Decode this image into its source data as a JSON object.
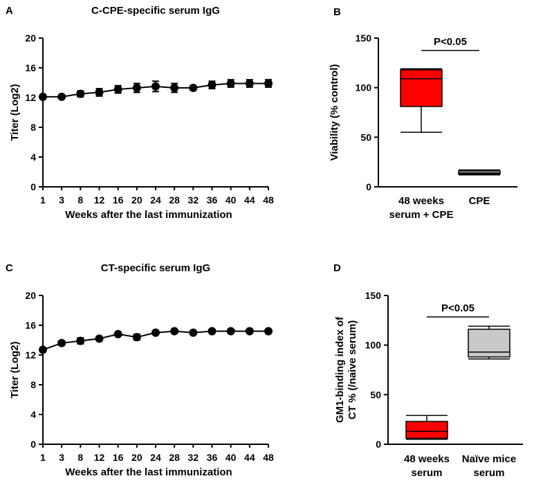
{
  "chart_data": [
    {
      "panel": "A",
      "type": "line",
      "title": "C-CPE-specific serum IgG",
      "xlabel": "Weeks after the last immunization",
      "ylabel": "Titer (Log2)",
      "ylim": [
        0,
        20
      ],
      "yticks": [
        0,
        4,
        8,
        12,
        16,
        20
      ],
      "xticks": [
        1,
        3,
        8,
        12,
        16,
        20,
        24,
        28,
        32,
        36,
        40,
        44,
        48
      ],
      "series": [
        {
          "name": "C-CPE-specific serum IgG",
          "x": [
            1,
            3,
            8,
            12,
            16,
            20,
            24,
            28,
            32,
            36,
            40,
            44,
            48
          ],
          "y": [
            12.1,
            12.1,
            12.5,
            12.7,
            13.1,
            13.3,
            13.5,
            13.3,
            13.3,
            13.7,
            13.9,
            13.9,
            13.9
          ],
          "err": [
            0,
            0,
            0.4,
            0.5,
            0.5,
            0.6,
            0.7,
            0.6,
            0.3,
            0.5,
            0.5,
            0.5,
            0.5
          ]
        }
      ]
    },
    {
      "panel": "B",
      "type": "box",
      "ylabel": "Viability (% control)",
      "ylim": [
        0,
        150
      ],
      "yticks": [
        0,
        50,
        100,
        150
      ],
      "annotation": "P<0.05",
      "boxes": [
        {
          "label_lines": [
            "48 weeks",
            "serum + CPE"
          ],
          "min": 55,
          "q1": 81,
          "median": 109,
          "q3": 118,
          "max": 119,
          "color": "#ff0000"
        },
        {
          "label_lines": [
            "CPE"
          ],
          "min": 12,
          "q1": 13,
          "median": 14,
          "q3": 16,
          "max": 17,
          "color": "#c8c8c8"
        }
      ]
    },
    {
      "panel": "C",
      "type": "line",
      "title": "CT-specific serum IgG",
      "xlabel": "Weeks after the last immunization",
      "ylabel": "Titer (Log2)",
      "ylim": [
        0,
        20
      ],
      "yticks": [
        0,
        4,
        8,
        12,
        16,
        20
      ],
      "xticks": [
        1,
        3,
        8,
        12,
        16,
        20,
        24,
        28,
        32,
        36,
        40,
        44,
        48
      ],
      "series": [
        {
          "name": "CT-specific serum IgG",
          "x": [
            1,
            3,
            8,
            12,
            16,
            20,
            24,
            28,
            32,
            36,
            40,
            44,
            48
          ],
          "y": [
            12.7,
            13.6,
            13.9,
            14.2,
            14.8,
            14.4,
            15.0,
            15.2,
            15.0,
            15.2,
            15.2,
            15.2,
            15.2
          ],
          "err": [
            0,
            0.3,
            0.4,
            0.2,
            0.2,
            0.4,
            0.2,
            0.1,
            0.1,
            0.1,
            0.1,
            0.1,
            0.1
          ]
        }
      ]
    },
    {
      "panel": "D",
      "type": "box",
      "ylabel_lines": [
        "GM1-binding index of",
        "CT % (/naive serum)"
      ],
      "ylim": [
        0,
        150
      ],
      "yticks": [
        0,
        50,
        100,
        150
      ],
      "annotation": "P<0.05",
      "boxes": [
        {
          "label_lines": [
            "48 weeks",
            "serum"
          ],
          "min": 5,
          "q1": 6,
          "median": 13,
          "q3": 23,
          "max": 29,
          "color": "#ff0000"
        },
        {
          "label_lines": [
            "Naïve mice",
            "serum"
          ],
          "min": 86,
          "q1": 88,
          "median": 93,
          "q3": 116,
          "max": 119,
          "color": "#c8c8c8"
        }
      ]
    }
  ]
}
